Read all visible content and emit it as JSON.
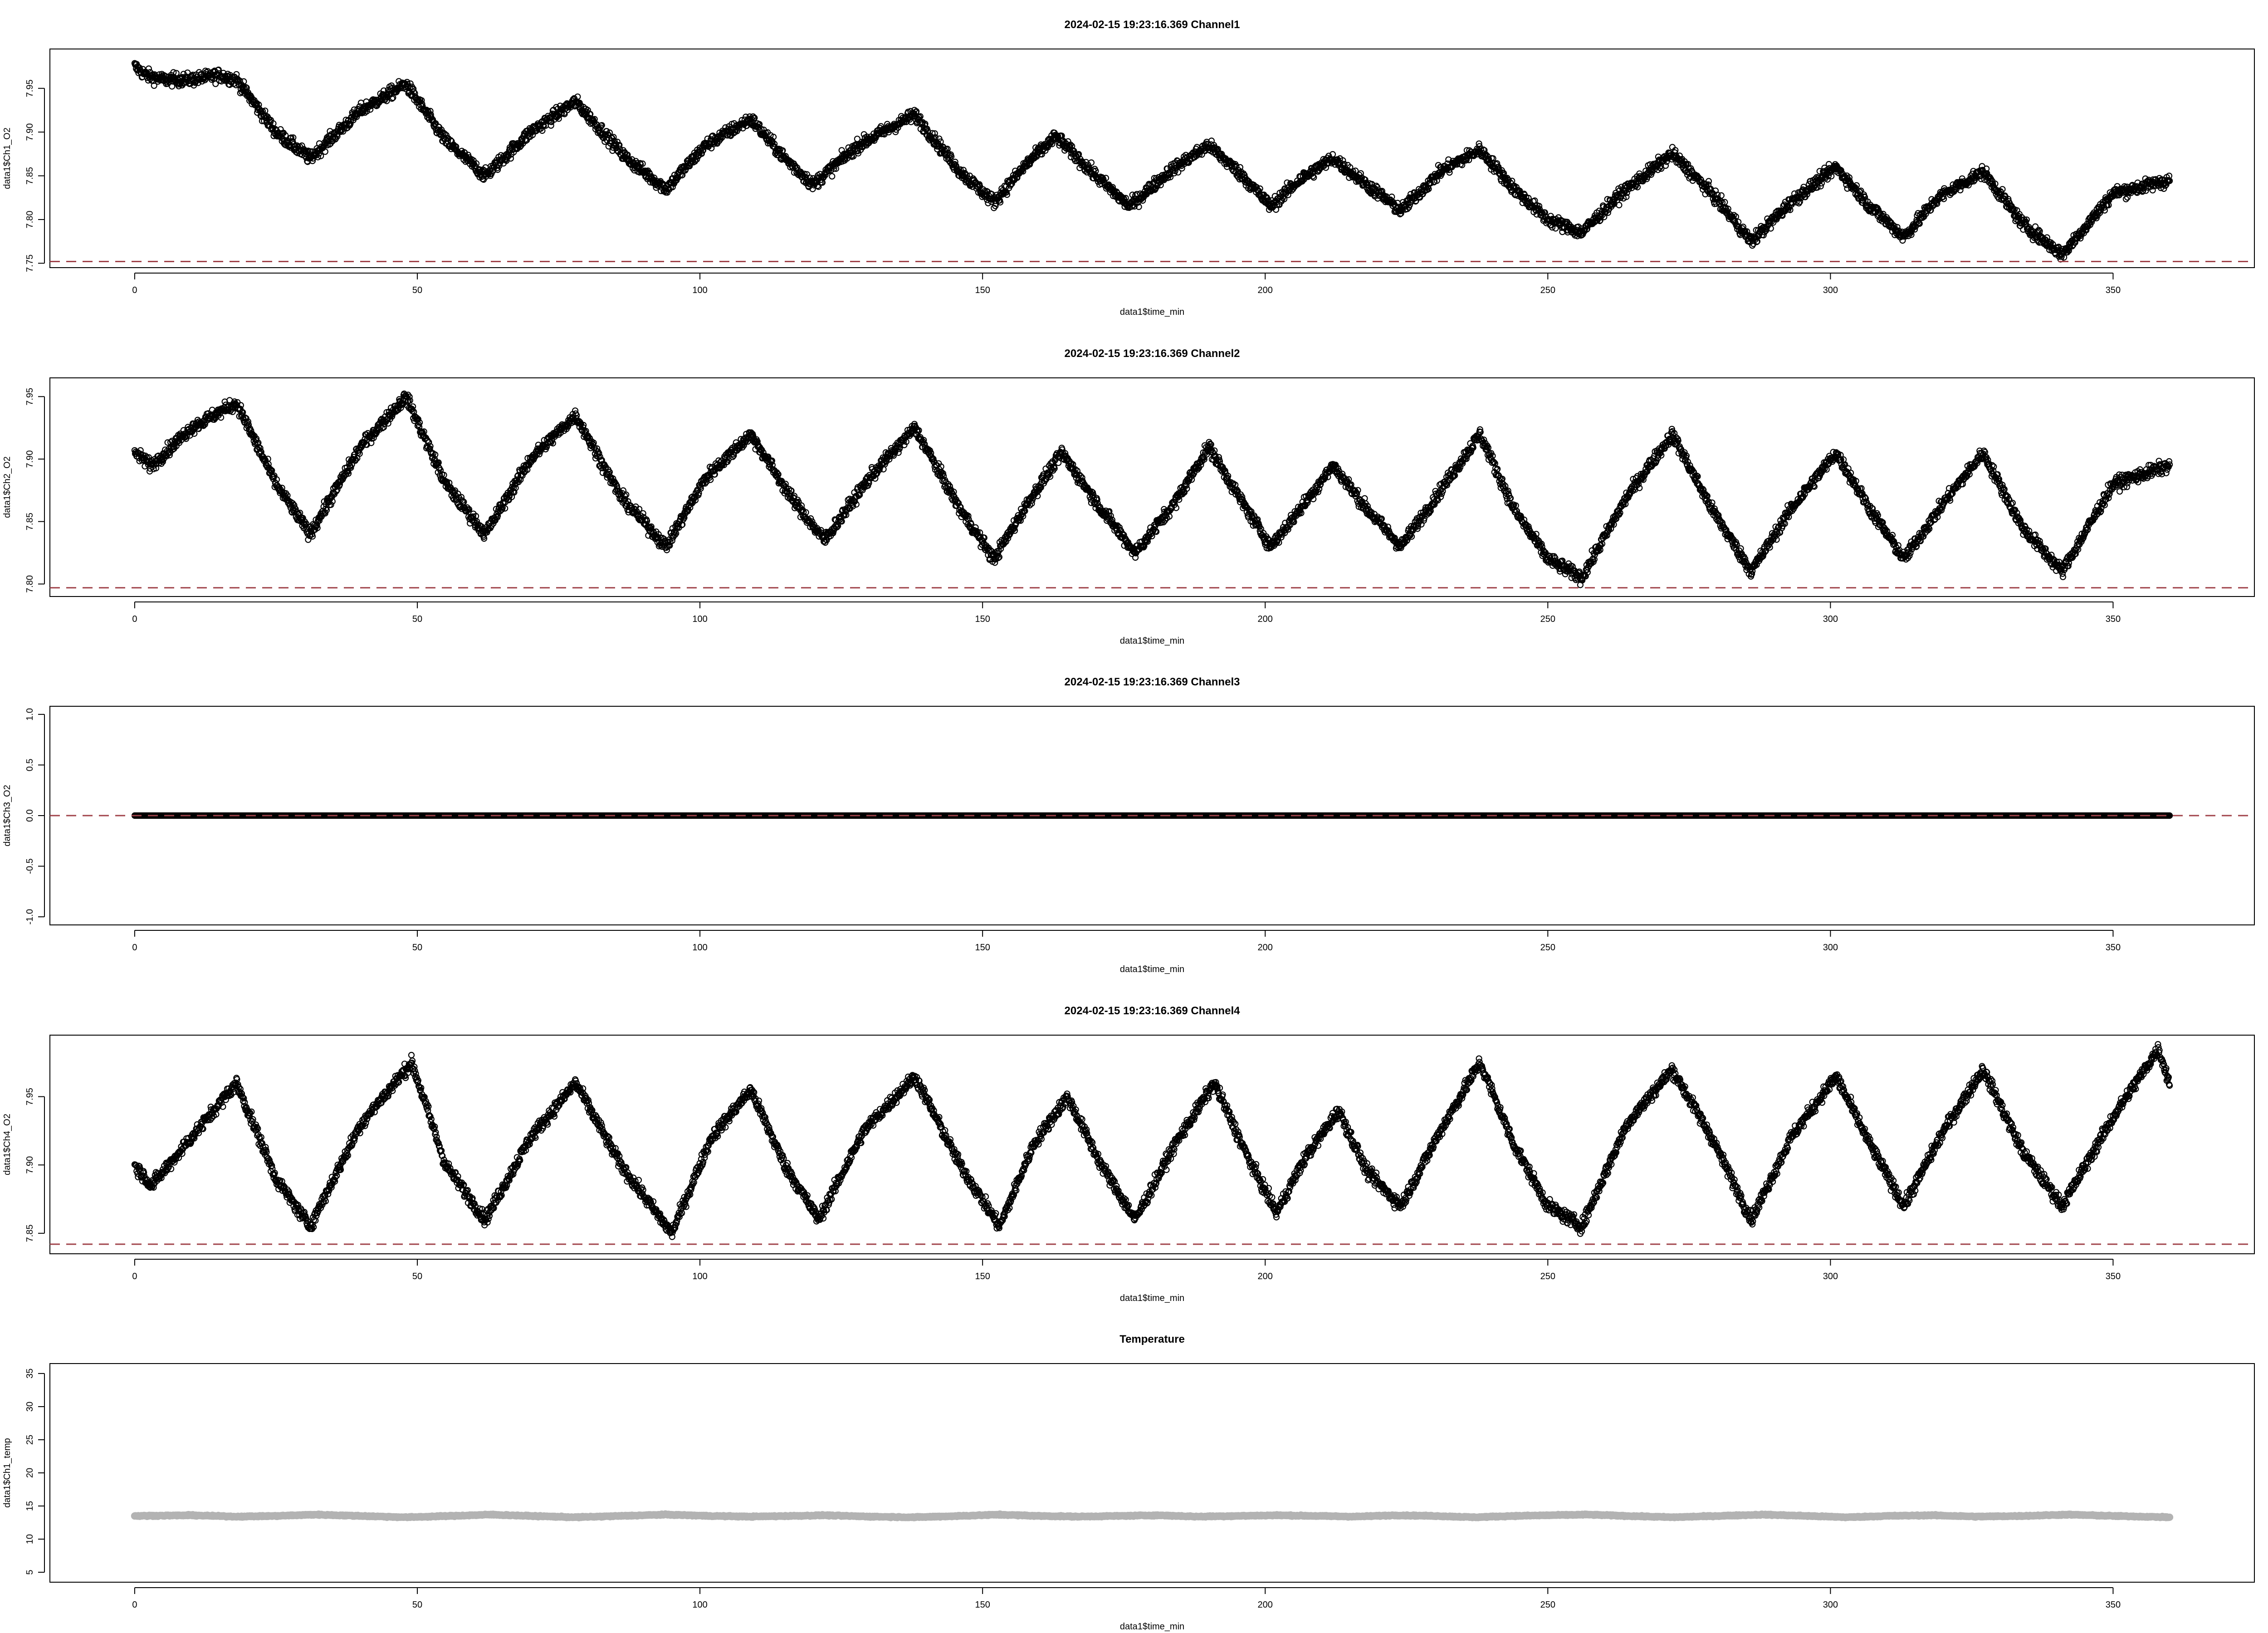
{
  "chart_data": [
    {
      "type": "scatter",
      "title": "2024-02-15 19:23:16.369 Channel1",
      "xlabel": "data1$time_min",
      "ylabel": "data1$Ch1_O2",
      "xlim": [
        -15,
        375
      ],
      "ylim": [
        7.745,
        7.995
      ],
      "xticks": [
        "0",
        "50",
        "100",
        "150",
        "200",
        "250",
        "300",
        "350"
      ],
      "yticks": [
        "7.75",
        "7.80",
        "7.85",
        "7.90",
        "7.95"
      ],
      "point_color": "#000000",
      "reference_line": {
        "y": 7.752,
        "style": "dashed",
        "color": "#a0434a"
      },
      "series": [
        {
          "x": [
            0,
            2,
            5,
            10,
            15,
            18,
            25,
            31,
            40,
            48,
            55,
            62,
            70,
            78,
            87,
            94,
            101,
            109,
            115,
            120,
            128,
            138,
            146,
            152,
            158,
            163,
            170,
            176,
            183,
            190,
            196,
            201,
            206,
            212,
            218,
            224,
            231,
            238,
            244,
            250,
            256,
            263,
            272,
            279,
            286,
            293,
            301,
            307,
            313,
            319,
            327,
            334,
            341,
            350,
            360
          ],
          "y": [
            7.975,
            7.965,
            7.96,
            7.96,
            7.965,
            7.96,
            7.9,
            7.87,
            7.925,
            7.955,
            7.89,
            7.85,
            7.9,
            7.935,
            7.87,
            7.835,
            7.885,
            7.915,
            7.87,
            7.84,
            7.885,
            7.92,
            7.855,
            7.82,
            7.865,
            7.895,
            7.85,
            7.815,
            7.855,
            7.885,
            7.85,
            7.815,
            7.845,
            7.87,
            7.84,
            7.81,
            7.855,
            7.88,
            7.835,
            7.8,
            7.785,
            7.83,
            7.875,
            7.83,
            7.775,
            7.82,
            7.86,
            7.815,
            7.78,
            7.825,
            7.855,
            7.795,
            7.76,
            7.83,
            7.845
          ]
        }
      ]
    },
    {
      "type": "scatter",
      "title": "2024-02-15 19:23:16.369 Channel2",
      "xlabel": "data1$time_min",
      "ylabel": "data1$Ch2_O2",
      "xlim": [
        -15,
        375
      ],
      "ylim": [
        7.79,
        7.965
      ],
      "xticks": [
        "0",
        "50",
        "100",
        "150",
        "200",
        "250",
        "300",
        "350"
      ],
      "yticks": [
        "7.80",
        "7.85",
        "7.90",
        "7.95"
      ],
      "point_color": "#000000",
      "reference_line": {
        "y": 7.797,
        "style": "dashed",
        "color": "#a0434a"
      },
      "series": [
        {
          "x": [
            0,
            3,
            10,
            18,
            25,
            31,
            40,
            48,
            55,
            62,
            70,
            78,
            86,
            94,
            101,
            109,
            116,
            122,
            130,
            138,
            146,
            152,
            158,
            164,
            171,
            177,
            184,
            190,
            196,
            201,
            207,
            212,
            218,
            224,
            231,
            238,
            244,
            250,
            256,
            264,
            272,
            279,
            286,
            293,
            301,
            307,
            313,
            320,
            327,
            334,
            341,
            350,
            360
          ],
          "y": [
            7.905,
            7.895,
            7.925,
            7.945,
            7.88,
            7.84,
            7.91,
            7.95,
            7.88,
            7.84,
            7.9,
            7.935,
            7.87,
            7.83,
            7.885,
            7.92,
            7.87,
            7.835,
            7.885,
            7.925,
            7.86,
            7.82,
            7.865,
            7.905,
            7.86,
            7.825,
            7.865,
            7.91,
            7.865,
            7.83,
            7.865,
            7.895,
            7.86,
            7.83,
            7.875,
            7.92,
            7.86,
            7.82,
            7.805,
            7.87,
            7.92,
            7.86,
            7.81,
            7.86,
            7.905,
            7.86,
            7.82,
            7.865,
            7.905,
            7.845,
            7.81,
            7.88,
            7.895
          ]
        }
      ]
    },
    {
      "type": "scatter",
      "title": "2024-02-15 19:23:16.369 Channel3",
      "xlabel": "data1$time_min",
      "ylabel": "data1$Ch3_O2",
      "xlim": [
        -15,
        375
      ],
      "ylim": [
        -1.08,
        1.08
      ],
      "xticks": [
        "0",
        "50",
        "100",
        "150",
        "200",
        "250",
        "300",
        "350"
      ],
      "yticks": [
        "-1.0",
        "-0.5",
        "0.0",
        "0.5",
        "1.0"
      ],
      "point_color": "#000000",
      "reference_line": {
        "y": 0,
        "style": "dashed",
        "color": "#a0434a"
      },
      "series": [
        {
          "x": [
            0,
            360
          ],
          "y": [
            0,
            0
          ]
        }
      ]
    },
    {
      "type": "scatter",
      "title": "2024-02-15 19:23:16.369 Channel4",
      "xlabel": "data1$time_min",
      "ylabel": "data1$Ch4_O2",
      "xlim": [
        -15,
        375
      ],
      "ylim": [
        7.835,
        7.995
      ],
      "xticks": [
        "0",
        "50",
        "100",
        "150",
        "200",
        "250",
        "300",
        "350"
      ],
      "yticks": [
        "7.85",
        "7.90",
        "7.95"
      ],
      "point_color": "#000000",
      "reference_line": {
        "y": 7.842,
        "style": "dashed",
        "color": "#a0434a"
      },
      "series": [
        {
          "x": [
            0,
            3,
            10,
            18,
            25,
            31,
            40,
            49,
            55,
            62,
            70,
            78,
            86,
            95,
            102,
            109,
            115,
            121,
            129,
            138,
            146,
            153,
            159,
            165,
            171,
            177,
            184,
            191,
            197,
            202,
            207,
            213,
            218,
            224,
            231,
            238,
            244,
            250,
            256,
            264,
            272,
            279,
            286,
            293,
            301,
            307,
            313,
            320,
            327,
            334,
            341,
            350,
            358,
            360
          ],
          "y": [
            7.9,
            7.885,
            7.92,
            7.96,
            7.89,
            7.855,
            7.93,
            7.975,
            7.9,
            7.86,
            7.92,
            7.96,
            7.9,
            7.85,
            7.92,
            7.955,
            7.9,
            7.86,
            7.925,
            7.965,
            7.9,
            7.855,
            7.915,
            7.95,
            7.9,
            7.86,
            7.915,
            7.96,
            7.905,
            7.865,
            7.905,
            7.94,
            7.895,
            7.87,
            7.925,
            7.975,
            7.915,
            7.87,
            7.855,
            7.93,
            7.97,
            7.92,
            7.86,
            7.92,
            7.965,
            7.915,
            7.87,
            7.925,
            7.97,
            7.91,
            7.87,
            7.935,
            7.985,
            7.96
          ]
        }
      ]
    },
    {
      "type": "scatter",
      "title": "Temperature",
      "xlabel": "data1$time_min",
      "ylabel": "data1$Ch1_temp",
      "xlim": [
        -15,
        375
      ],
      "ylim": [
        3.5,
        36.5
      ],
      "xticks": [
        "0",
        "50",
        "100",
        "150",
        "200",
        "250",
        "300",
        "350"
      ],
      "yticks": [
        "5",
        "10",
        "15",
        "20",
        "25",
        "30",
        "35"
      ],
      "point_color": "#b3b3b3",
      "series": [
        {
          "x": [
            0,
            10,
            18,
            25,
            32,
            40,
            48,
            56,
            63,
            70,
            78,
            86,
            94,
            102,
            109,
            116,
            122,
            130,
            138,
            146,
            153,
            160,
            167,
            174,
            181,
            188,
            195,
            202,
            209,
            216,
            223,
            230,
            237,
            244,
            250,
            257,
            264,
            272,
            280,
            288,
            296,
            303,
            310,
            318,
            326,
            334,
            342,
            350,
            360
          ],
          "y": [
            13.5,
            13.6,
            13.4,
            13.5,
            13.7,
            13.5,
            13.3,
            13.5,
            13.7,
            13.5,
            13.3,
            13.5,
            13.7,
            13.5,
            13.4,
            13.5,
            13.6,
            13.4,
            13.3,
            13.5,
            13.7,
            13.5,
            13.4,
            13.5,
            13.6,
            13.4,
            13.5,
            13.6,
            13.5,
            13.4,
            13.6,
            13.5,
            13.3,
            13.5,
            13.6,
            13.7,
            13.5,
            13.3,
            13.5,
            13.7,
            13.5,
            13.3,
            13.5,
            13.6,
            13.4,
            13.5,
            13.7,
            13.5,
            13.3
          ]
        }
      ]
    }
  ]
}
